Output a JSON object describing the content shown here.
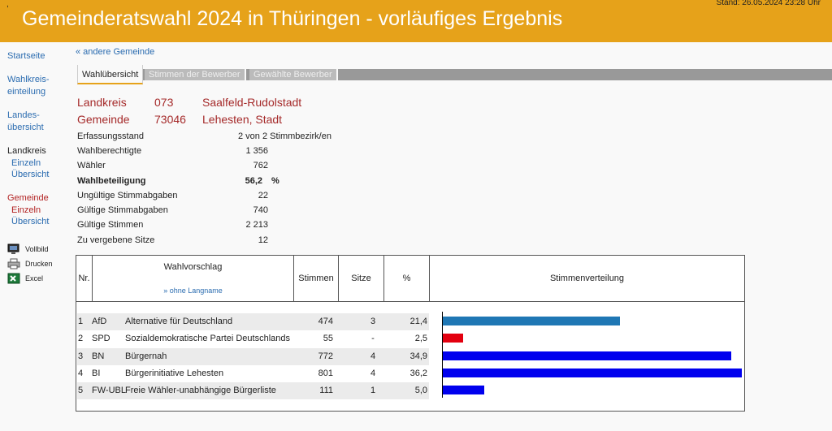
{
  "header": {
    "title": "Gemeinderatswahl 2024 in Thüringen - vorläufiges Ergebnis",
    "stand": "Stand: 26.05.2024  23:28 Uhr",
    "mark": ","
  },
  "sidebar": {
    "startseite": "Startseite",
    "wahlkreis1": "Wahlkreis-",
    "wahlkreis2": "einteilung",
    "landes1": "Landes-",
    "landes2": "übersicht",
    "landkreis": "Landkreis",
    "lk_einzeln": "Einzeln",
    "lk_uebersicht": "Übersicht",
    "gemeinde": "Gemeinde",
    "gem_einzeln": "Einzeln",
    "gem_uebersicht": "Übersicht",
    "vollbild": "Vollbild",
    "drucken": "Drucken",
    "excel": "Excel"
  },
  "back_link": "« andere Gemeinde",
  "tabs": [
    "Wahlübersicht",
    "Stimmen der Bewerber",
    "Gewählte Bewerber"
  ],
  "region": {
    "landkreis_label": "Landkreis",
    "landkreis_nr": "073",
    "landkreis_name": "Saalfeld-Rudolstadt",
    "gemeinde_label": "Gemeinde",
    "gemeinde_nr": "73046",
    "gemeinde_name": "Lehesten, Stadt"
  },
  "stats": {
    "erfassung_label": "Erfassungsstand",
    "erfassung_value": "2 von 2 Stimmbezirk/en",
    "berechtigte_label": "Wahlberechtigte",
    "berechtigte_value": "1 356",
    "waehler_label": "Wähler",
    "waehler_value": "762",
    "beteiligung_label": "Wahlbeteiligung",
    "beteiligung_value": "56,2",
    "beteiligung_unit": "%",
    "ungueltig_label": "Ungültige Stimmabgaben",
    "ungueltig_value": "22",
    "gueltig_abgaben_label": "Gültige Stimmabgaben",
    "gueltig_abgaben_value": "740",
    "gueltig_stimmen_label": "Gültige Stimmen",
    "gueltig_stimmen_value": "2 213",
    "sitze_label": "Zu vergebene Sitze",
    "sitze_value": "12"
  },
  "table": {
    "col_nr": "Nr.",
    "col_wahlvorschlag": "Wahlvorschlag",
    "ohne_langname": "» ohne Langname",
    "col_stimmen": "Stimmen",
    "col_sitze": "Sitze",
    "col_pct": "%",
    "col_verteilung": "Stimmenverteilung",
    "rows": [
      {
        "nr": "1",
        "kurz": "AfD",
        "lang": "Alternative für Deutschland",
        "stimmen": "474",
        "sitze": "3",
        "pct": "21,4",
        "share": 21.4,
        "color": "#1f77b4"
      },
      {
        "nr": "2",
        "kurz": "SPD",
        "lang": "Sozialdemokratische Partei Deutschlands",
        "stimmen": "55",
        "sitze": "-",
        "pct": "2,5",
        "share": 2.5,
        "color": "#e3000f"
      },
      {
        "nr": "3",
        "kurz": "BN",
        "lang": "Bürgernah",
        "stimmen": "772",
        "sitze": "4",
        "pct": "34,9",
        "share": 34.9,
        "color": "#0000ee"
      },
      {
        "nr": "4",
        "kurz": "BI",
        "lang": "Bürgerinitiative Lehesten",
        "stimmen": "801",
        "sitze": "4",
        "pct": "36,2",
        "share": 36.2,
        "color": "#0000ee"
      },
      {
        "nr": "5",
        "kurz": "FW-UBL",
        "lang": "Freie Wähler-unabhängige Bürgerliste",
        "stimmen": "111",
        "sitze": "1",
        "pct": "5,0",
        "share": 5.0,
        "color": "#0000ee"
      }
    ]
  }
}
